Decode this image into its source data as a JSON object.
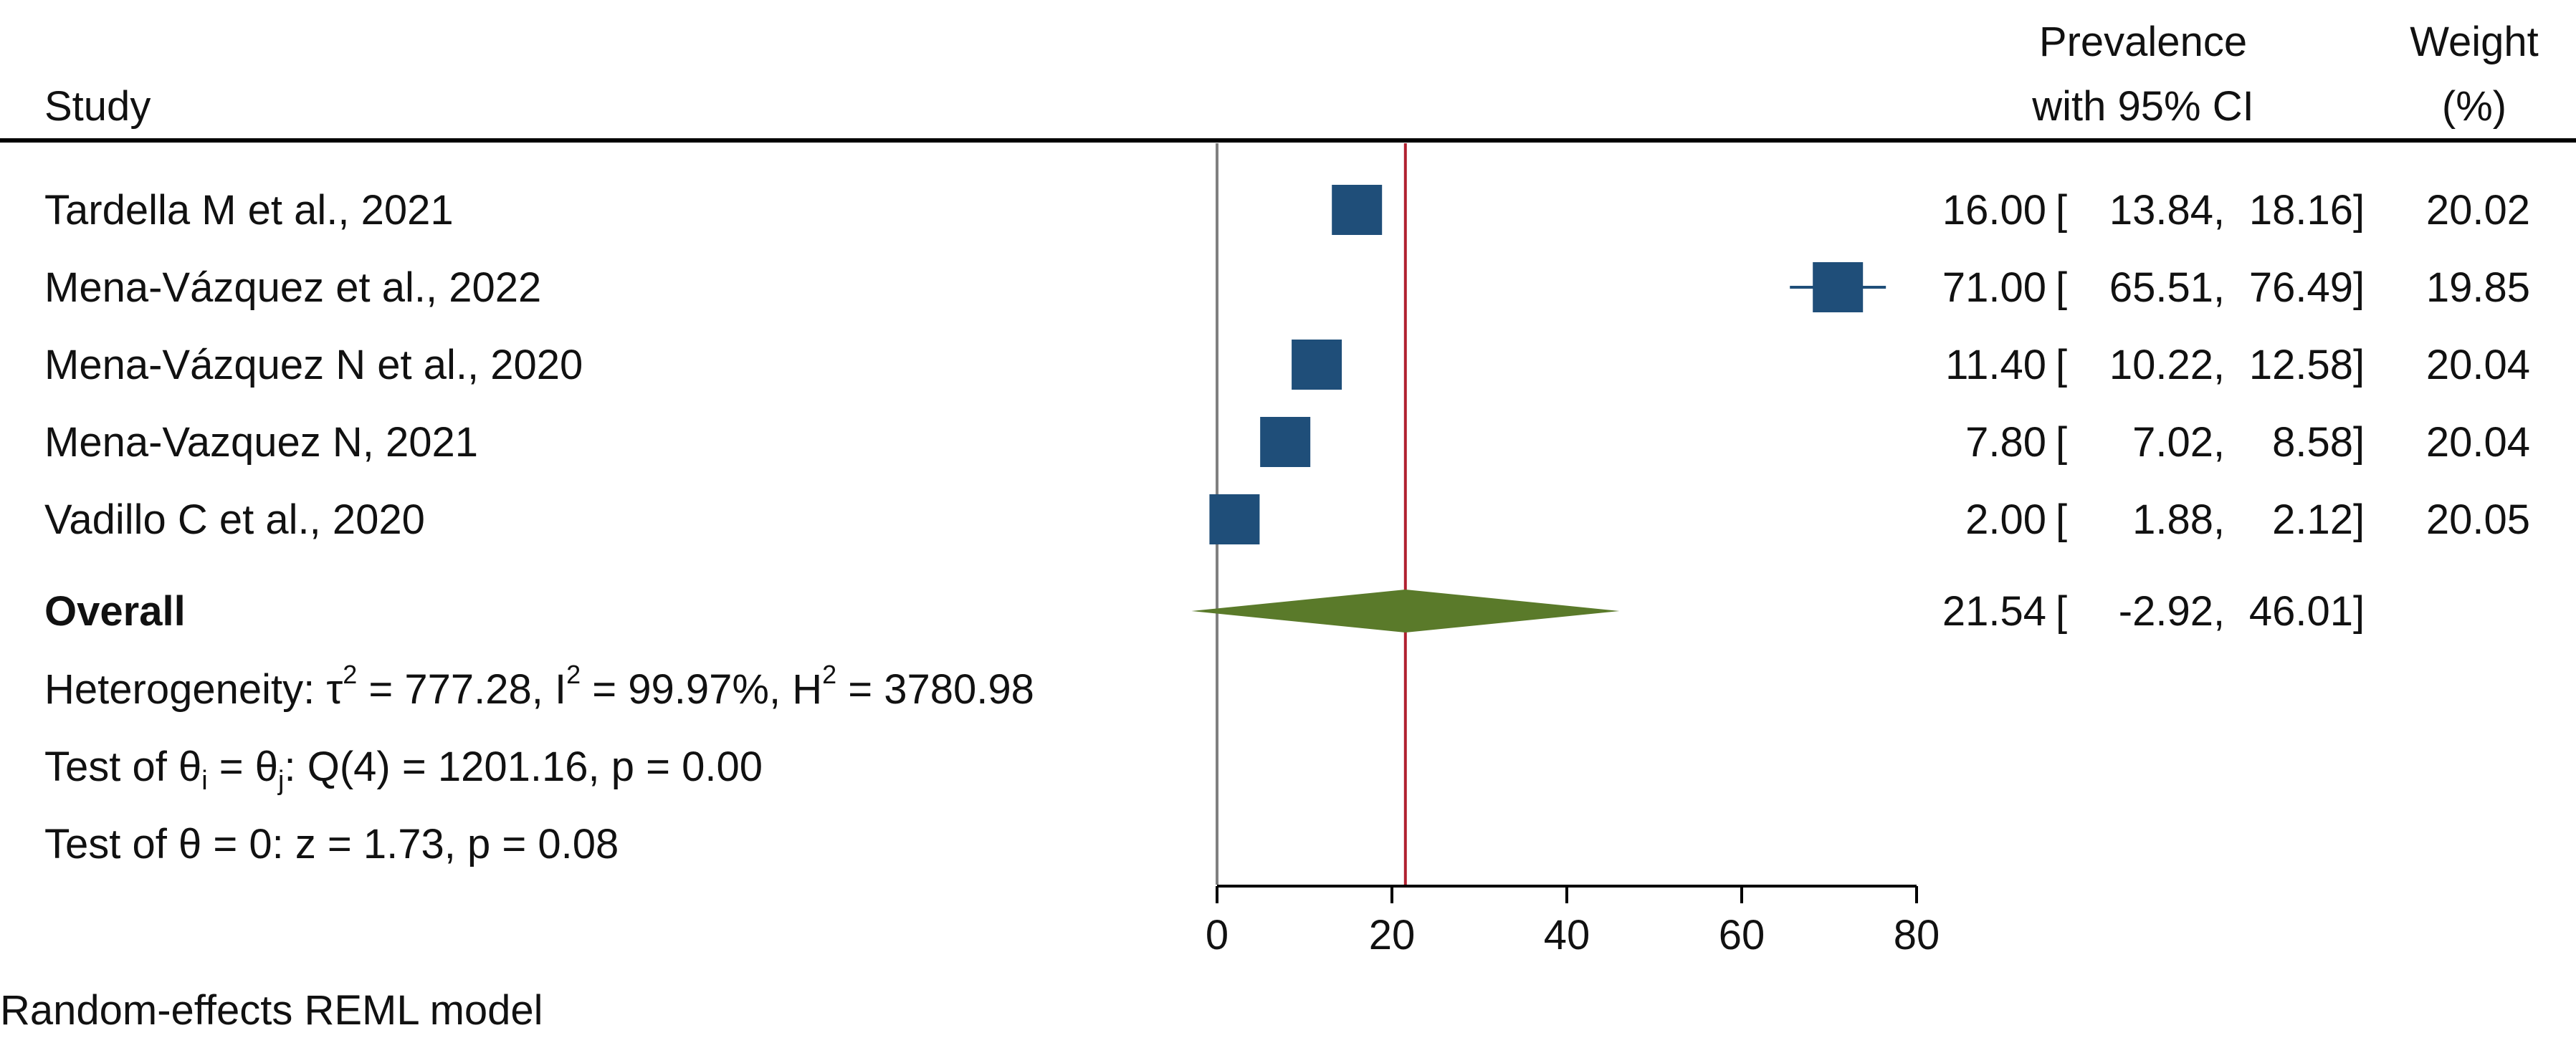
{
  "chart_data": {
    "type": "forest",
    "headers": {
      "study": "Study",
      "estimate_line1": "Prevalence",
      "estimate_line2": "with 95% CI",
      "weight_line1": "Weight",
      "weight_line2": "(%)"
    },
    "studies": [
      {
        "label": "Tardella M et al., 2021",
        "estimate": 16.0,
        "ci_low": 13.84,
        "ci_high": 18.16,
        "weight": 20.02,
        "est_text": "16.00",
        "low_text": "13.84",
        "high_text": "18.16",
        "weight_text": "20.02"
      },
      {
        "label": "Mena-Vázquez et al., 2022",
        "estimate": 71.0,
        "ci_low": 65.51,
        "ci_high": 76.49,
        "weight": 19.85,
        "est_text": "71.00",
        "low_text": "65.51",
        "high_text": "76.49",
        "weight_text": "19.85"
      },
      {
        "label": "Mena-Vázquez N et al., 2020",
        "estimate": 11.4,
        "ci_low": 10.22,
        "ci_high": 12.58,
        "weight": 20.04,
        "est_text": "11.40",
        "low_text": "10.22",
        "high_text": "12.58",
        "weight_text": "20.04"
      },
      {
        "label": "Mena-Vazquez N, 2021",
        "estimate": 7.8,
        "ci_low": 7.02,
        "ci_high": 8.58,
        "weight": 20.04,
        "est_text": "7.80",
        "low_text": "7.02",
        "high_text": "8.58",
        "weight_text": "20.04"
      },
      {
        "label": "Vadillo C et al., 2020",
        "estimate": 2.0,
        "ci_low": 1.88,
        "ci_high": 2.12,
        "weight": 20.05,
        "est_text": "2.00",
        "low_text": "1.88",
        "high_text": "2.12",
        "weight_text": "20.05"
      }
    ],
    "overall": {
      "label": "Overall",
      "estimate": 21.54,
      "ci_low": -2.92,
      "ci_high": 46.01,
      "est_text": "21.54",
      "low_text": "-2.92",
      "high_text": "46.01"
    },
    "heterogeneity": {
      "prefix": "Heterogeneity: τ",
      "tau_exp": "2",
      "tau_val": " = 777.28, I",
      "i_exp": "2",
      "i_val": " = 99.97%, H",
      "h_exp": "2",
      "h_val": " = 3780.98"
    },
    "q_test": {
      "p1": "Test of θ",
      "s1": "i",
      "p2": " = θ",
      "s2": "j",
      "p3": ": Q(4) = 1201.16, p = 0.00"
    },
    "z_test": "Test of θ = 0: z = 1.73, p = 0.08",
    "model_note": "Random-effects REML model",
    "xaxis": {
      "min": 0,
      "max": 80,
      "ticks": [
        0,
        20,
        40,
        60,
        80
      ]
    },
    "null_value": 0,
    "colors": {
      "marker": "#1f4e79",
      "overall_diamond": "#5a7a2a",
      "overall_line": "#b02030",
      "null_line": "#808080",
      "axis": "#000000"
    }
  }
}
